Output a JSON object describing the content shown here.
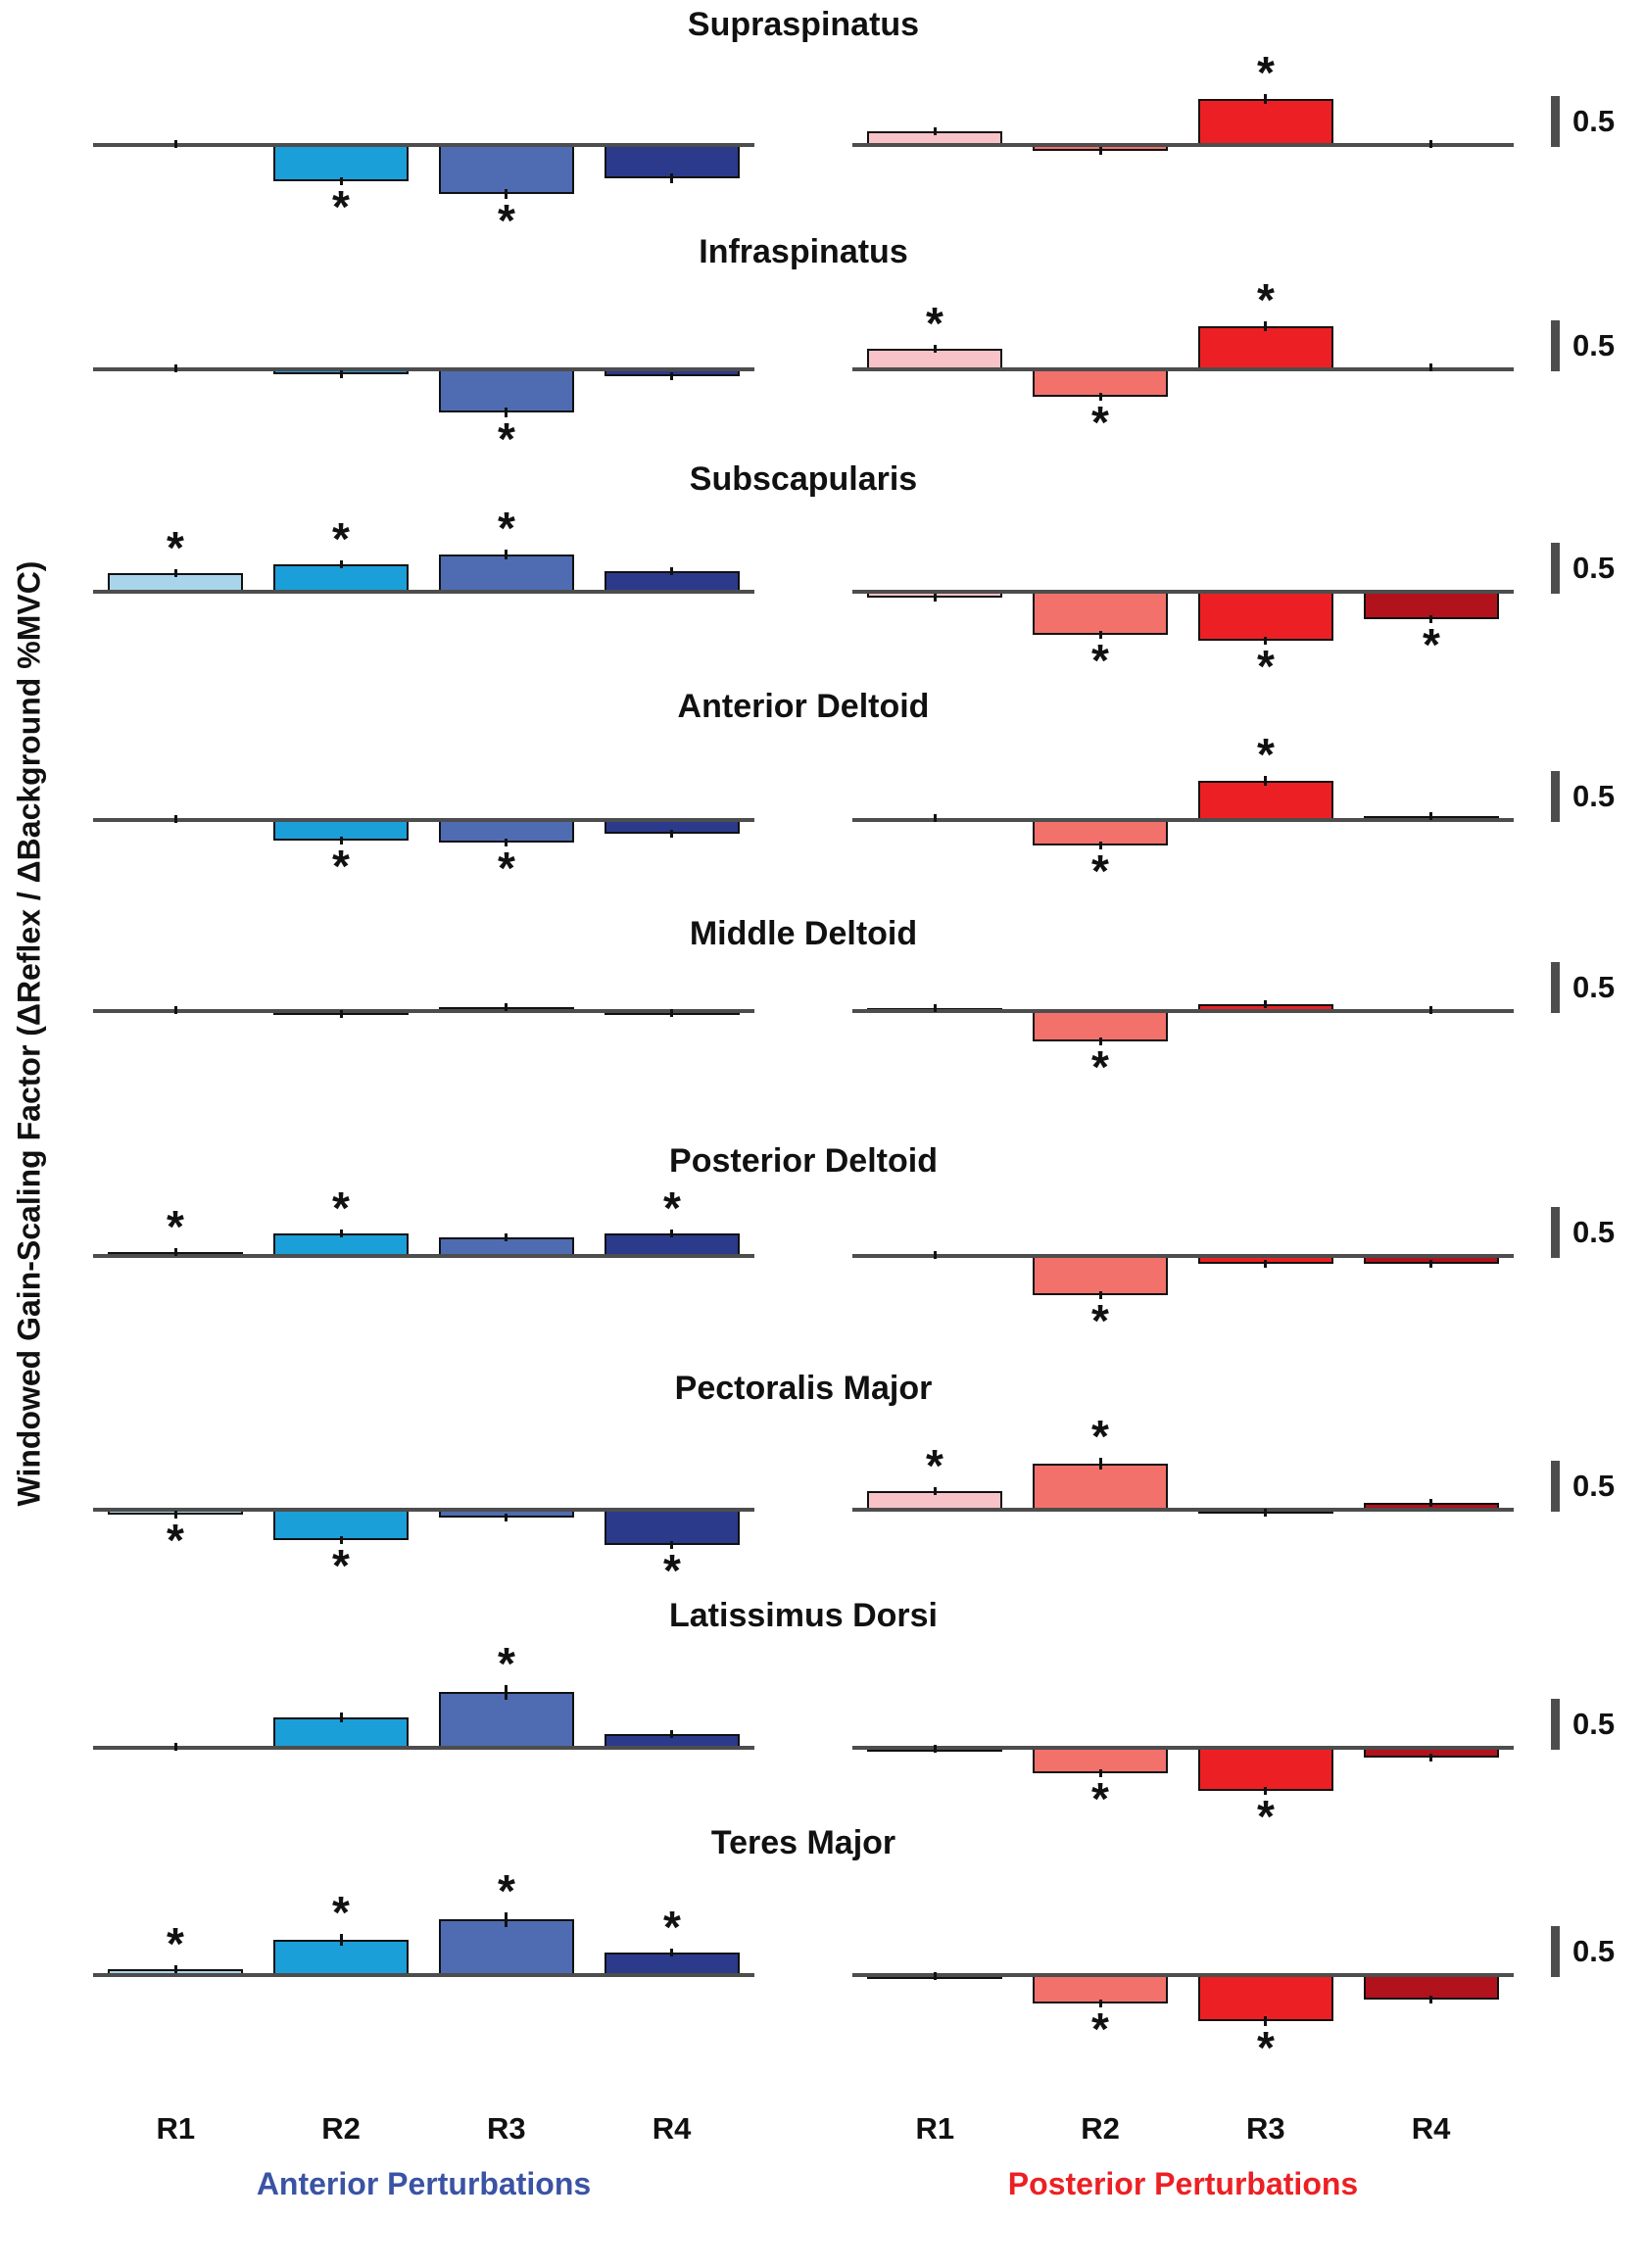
{
  "figure": {
    "y_axis_label": "Windowed Gain-Scaling Factor (ΔReflex / ΔBackground %MVC)",
    "anterior_axis_title": "Anterior Perturbations",
    "posterior_axis_title": "Posterior Perturbations",
    "scale_bar_label": "0.5"
  },
  "chart_data": {
    "type": "bar",
    "title": "",
    "ylabel": "Windowed Gain-Scaling Factor (ΔReflex / ΔBackground %MVC)",
    "categories": [
      "R1",
      "R2",
      "R3",
      "R4"
    ],
    "series_sides": [
      "anterior",
      "posterior"
    ],
    "scale_bar_value": 0.5,
    "scale_bar_label": "0.5",
    "legend": {
      "anterior": "Anterior Perturbations (blue bars, left panels)",
      "posterior": "Posterior Perturbations (red bars, right panels)"
    },
    "layout_hints": {
      "grid": false,
      "zero_baseline_shown": true,
      "significance_marker": "*",
      "error_bars": true,
      "per_row_scale_bar": 0.5
    },
    "colors": {
      "anterior": [
        "#a9d5ea",
        "#1b9fd8",
        "#4f6cb2",
        "#2c3a8c"
      ],
      "posterior": [
        "#f8c3c8",
        "#f3716b",
        "#ec2024",
        "#b1121c"
      ],
      "anterior_label": "#3a53a4",
      "posterior_label": "#ec2024",
      "scale_bar": "#4d4d4d",
      "baseline": "#4d4d4d",
      "bar_border": "#111111"
    },
    "groups": [
      {
        "muscle": "Supraspinatus",
        "anterior": {
          "values": [
            0.01,
            -0.36,
            -0.48,
            -0.33
          ],
          "sig": [
            false,
            true,
            true,
            false
          ],
          "err": [
            0.02,
            0.04,
            0.05,
            0.05
          ]
        },
        "posterior": {
          "values": [
            0.13,
            -0.06,
            0.45,
            0.01
          ],
          "sig": [
            false,
            false,
            true,
            false
          ],
          "err": [
            0.03,
            0.02,
            0.05,
            0.02
          ]
        }
      },
      {
        "muscle": "Infraspinatus",
        "anterior": {
          "values": [
            0.01,
            -0.05,
            -0.42,
            -0.07
          ],
          "sig": [
            false,
            false,
            true,
            false
          ],
          "err": [
            0.02,
            0.02,
            0.05,
            0.03
          ]
        },
        "posterior": {
          "values": [
            0.2,
            -0.27,
            0.42,
            0.02
          ],
          "sig": [
            true,
            true,
            true,
            false
          ],
          "err": [
            0.04,
            0.04,
            0.05,
            0.02
          ]
        }
      },
      {
        "muscle": "Subscapularis",
        "anterior": {
          "values": [
            0.18,
            0.27,
            0.37,
            0.2
          ],
          "sig": [
            true,
            true,
            true,
            false
          ],
          "err": [
            0.03,
            0.04,
            0.05,
            0.04
          ]
        },
        "posterior": {
          "values": [
            -0.06,
            -0.42,
            -0.48,
            -0.27
          ],
          "sig": [
            false,
            true,
            true,
            true
          ],
          "err": [
            0.02,
            0.04,
            0.04,
            0.04
          ]
        }
      },
      {
        "muscle": "Anterior Deltoid",
        "anterior": {
          "values": [
            0.01,
            -0.2,
            -0.22,
            -0.13
          ],
          "sig": [
            false,
            true,
            true,
            false
          ],
          "err": [
            0.02,
            0.03,
            0.03,
            0.03
          ]
        },
        "posterior": {
          "values": [
            0.02,
            -0.25,
            0.38,
            0.04
          ],
          "sig": [
            false,
            true,
            true,
            false
          ],
          "err": [
            0.02,
            0.03,
            0.05,
            0.02
          ]
        }
      },
      {
        "muscle": "Middle Deltoid",
        "anterior": {
          "values": [
            0.01,
            -0.03,
            0.04,
            -0.02
          ],
          "sig": [
            false,
            false,
            false,
            false
          ],
          "err": [
            0.01,
            0.02,
            0.02,
            0.02
          ]
        },
        "posterior": {
          "values": [
            0.03,
            -0.3,
            0.07,
            0.01
          ],
          "sig": [
            false,
            true,
            false,
            false
          ],
          "err": [
            0.02,
            0.04,
            0.03,
            0.01
          ]
        }
      },
      {
        "muscle": "Posterior Deltoid",
        "anterior": {
          "values": [
            0.04,
            0.22,
            0.18,
            0.22
          ],
          "sig": [
            true,
            true,
            false,
            true
          ],
          "err": [
            0.02,
            0.03,
            0.03,
            0.03
          ]
        },
        "posterior": {
          "values": [
            0.01,
            -0.38,
            -0.08,
            -0.08
          ],
          "sig": [
            false,
            true,
            false,
            false
          ],
          "err": [
            0.01,
            0.04,
            0.02,
            0.02
          ]
        }
      },
      {
        "muscle": "Pectoralis Major",
        "anterior": {
          "values": [
            -0.05,
            -0.3,
            -0.08,
            -0.35
          ],
          "sig": [
            true,
            true,
            false,
            true
          ],
          "err": [
            0.02,
            0.04,
            0.03,
            0.04
          ]
        },
        "posterior": {
          "values": [
            0.18,
            0.45,
            -0.03,
            0.07
          ],
          "sig": [
            true,
            true,
            false,
            false
          ],
          "err": [
            0.03,
            0.06,
            0.02,
            0.03
          ]
        }
      },
      {
        "muscle": "Latissimus Dorsi",
        "anterior": {
          "values": [
            0.01,
            0.3,
            0.55,
            0.13
          ],
          "sig": [
            false,
            false,
            true,
            false
          ],
          "err": [
            0.01,
            0.05,
            0.07,
            0.03
          ]
        },
        "posterior": {
          "values": [
            -0.01,
            -0.25,
            -0.42,
            -0.1
          ],
          "sig": [
            false,
            true,
            true,
            false
          ],
          "err": [
            0.01,
            0.04,
            0.04,
            0.02
          ]
        }
      },
      {
        "muscle": "Teres Major",
        "anterior": {
          "values": [
            0.06,
            0.35,
            0.55,
            0.22
          ],
          "sig": [
            true,
            true,
            true,
            true
          ],
          "err": [
            0.02,
            0.06,
            0.07,
            0.04
          ]
        },
        "posterior": {
          "values": [
            -0.01,
            -0.28,
            -0.45,
            -0.24
          ],
          "sig": [
            false,
            true,
            true,
            false
          ],
          "err": [
            0.01,
            0.04,
            0.05,
            0.04
          ]
        }
      }
    ]
  }
}
